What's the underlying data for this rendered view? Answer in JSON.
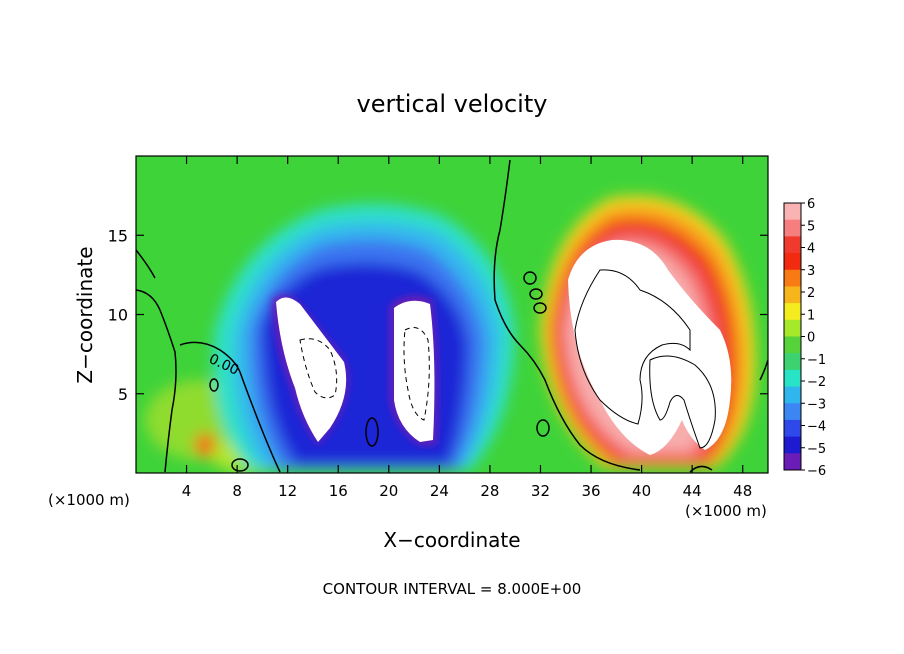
{
  "chart_data": {
    "type": "heatmap",
    "title": "vertical velocity",
    "xlabel": "X−coordinate",
    "ylabel": "Z−coordinate",
    "x_unit_left": "(×1000 m)",
    "x_unit_right": "(×1000 m)",
    "xlim": [
      0,
      50
    ],
    "ylim": [
      0,
      20
    ],
    "x_ticks": [
      4,
      8,
      12,
      16,
      20,
      24,
      28,
      32,
      36,
      40,
      44,
      48
    ],
    "y_ticks": [
      5,
      10,
      15
    ],
    "footer": "CONTOUR INTERVAL = 8.000E+00",
    "contour_label": "0.00",
    "colorbar": {
      "min": -6,
      "max": 6,
      "labels": [
        "6",
        "5",
        "4",
        "3",
        "2",
        "1",
        "0",
        "−1",
        "−2",
        "−3",
        "−4",
        "−5",
        "−6"
      ],
      "colors": [
        "#f9b3b3",
        "#f77e7e",
        "#f03a2e",
        "#f22a10",
        "#f87a12",
        "#f6b51a",
        "#f5ec1f",
        "#a6e82a",
        "#56d23a",
        "#3cd271",
        "#29e3c7",
        "#30b6ee",
        "#3c86f3",
        "#2e48ea",
        "#1d1ad0",
        "#6a1cb6"
      ]
    },
    "features": [
      {
        "name": "downdraft",
        "x": 14.5,
        "z": 7.5,
        "value": -6
      },
      {
        "name": "downdraft",
        "x": 22.5,
        "z": 7.5,
        "value": -6
      },
      {
        "name": "updraft",
        "x": 40.0,
        "z": 8.5,
        "value": 6
      },
      {
        "name": "weak-updraft",
        "x": 5.5,
        "z": 2.0,
        "value": 3
      }
    ]
  }
}
